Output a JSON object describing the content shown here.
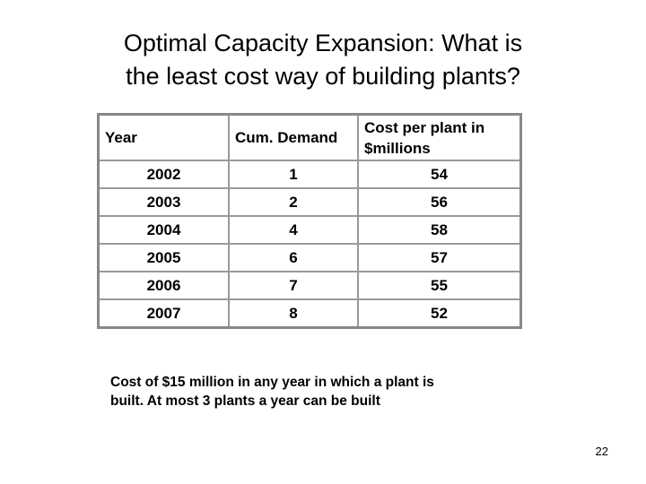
{
  "title": [
    "Optimal Capacity Expansion: What is",
    "the least cost way of building plants?"
  ],
  "table": {
    "header": [
      "Year",
      "Cum. Demand",
      "Cost per plant in $millions"
    ],
    "rows": [
      [
        2002,
        1,
        54
      ],
      [
        2003,
        2,
        56
      ],
      [
        2004,
        4,
        58
      ],
      [
        2005,
        6,
        57
      ],
      [
        2006,
        7,
        55
      ],
      [
        2007,
        8,
        52
      ]
    ]
  },
  "note": [
    "Cost of $15 million in any year in which a plant is",
    "built. At most 3 plants a year can be built"
  ],
  "page_number": 22
}
